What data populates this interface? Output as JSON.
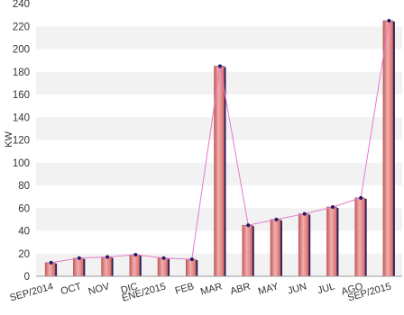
{
  "chart_data": {
    "type": "bar",
    "categories": [
      "SEP/2014",
      "OCT",
      "NOV",
      "DIC",
      "ENE/2015",
      "FEB",
      "MAR",
      "ABR",
      "MAY",
      "JUN",
      "JUL",
      "AGO",
      "SEP/2015"
    ],
    "series": [
      {
        "values": [
          12,
          16,
          17,
          19,
          16,
          15,
          185,
          45,
          50,
          55,
          61,
          69,
          225
        ]
      }
    ],
    "title": "",
    "xlabel": "",
    "ylabel": "KW",
    "ylim": [
      0,
      240
    ],
    "yticks": [
      0,
      20,
      40,
      60,
      80,
      100,
      120,
      140,
      160,
      180,
      200,
      220,
      240
    ],
    "overlay": "line",
    "grid": "horizontal bands",
    "legend": "none"
  },
  "colors": {
    "bar_fill": "#e07a7a",
    "bar_highlight": "#f4b6b6",
    "bar_shadow": "#2a1f5a",
    "line": "#e67ac8",
    "marker": "#1a1a6e",
    "band": "#f2f2f2"
  }
}
